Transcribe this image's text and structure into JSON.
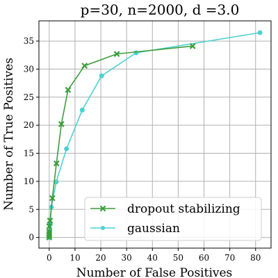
{
  "chart_data": {
    "type": "line",
    "title": "p=30, n=2000, d =3.0",
    "xlabel": "Number of False Positives",
    "ylabel": "Number of True Positives",
    "xlim": [
      -4,
      86
    ],
    "ylim": [
      -1.9,
      38.6
    ],
    "xticks": [
      0,
      10,
      20,
      30,
      40,
      50,
      60,
      70,
      80
    ],
    "yticks": [
      0,
      5,
      10,
      15,
      20,
      25,
      30,
      35
    ],
    "grid": true,
    "legend_position": "lower-right",
    "series": [
      {
        "name": "dropout stabilizing",
        "color": "#3a9d3a",
        "marker": "x",
        "points": [
          [
            0,
            0
          ],
          [
            0,
            0.3
          ],
          [
            0,
            0.6
          ],
          [
            0,
            1.0
          ],
          [
            0,
            2.0
          ],
          [
            0.3,
            3.0
          ],
          [
            1.2,
            7.0
          ],
          [
            2.8,
            13.2
          ],
          [
            4.7,
            20.2
          ],
          [
            7.3,
            26.3
          ],
          [
            13.7,
            30.6
          ],
          [
            26.2,
            32.7
          ],
          [
            55.6,
            34.1
          ]
        ]
      },
      {
        "name": "gaussian",
        "color": "#4dd0d0",
        "marker": "circle",
        "points": [
          [
            0,
            0
          ],
          [
            0,
            0.3
          ],
          [
            0,
            0.6
          ],
          [
            0.2,
            1.2
          ],
          [
            0.4,
            2.3
          ],
          [
            0.8,
            5.4
          ],
          [
            2.7,
            9.9
          ],
          [
            6.7,
            15.8
          ],
          [
            12.8,
            22.7
          ],
          [
            20.3,
            28.8
          ],
          [
            33.7,
            32.9
          ],
          [
            81.7,
            36.5
          ]
        ]
      }
    ]
  }
}
